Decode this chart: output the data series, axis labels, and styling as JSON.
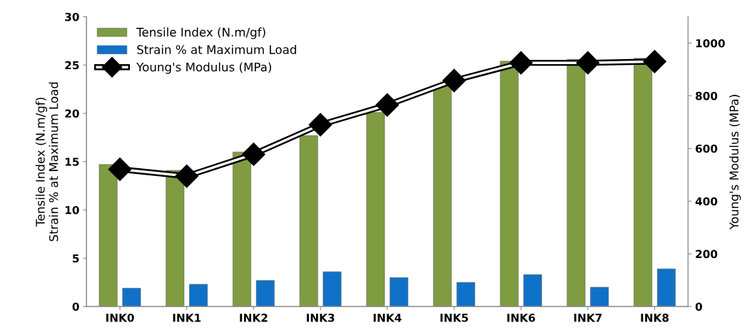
{
  "chart_data": {
    "type": "bar",
    "ylabel": "Tensile Index (N.m/gf)\nStrain % at Maximum Load",
    "y2label": "Young's Modulus (MPa)",
    "categories": [
      "INK0",
      "INK1",
      "INK2",
      "INK3",
      "INK4",
      "INK5",
      "INK6",
      "INK7",
      "INK8"
    ],
    "series": [
      {
        "name": "Tensile Index (N.m/gf)",
        "color": "#7f9c41",
        "values": [
          14.7,
          14.1,
          16.0,
          17.7,
          20.1,
          22.9,
          25.4,
          25.6,
          25.7
        ]
      },
      {
        "name": "Strain % at Maximum Load",
        "color": "#0f72c8",
        "values": [
          1.9,
          2.3,
          2.7,
          3.6,
          3.0,
          2.5,
          3.3,
          2.0,
          3.9
        ]
      },
      {
        "name": "Young's Modulus (MPa)",
        "type": "line",
        "axis": "y2",
        "color": "#000000",
        "marker": "diamond",
        "values": [
          521,
          495,
          578,
          690,
          765,
          858,
          925,
          925,
          930
        ]
      }
    ],
    "ylim": [
      0,
      30
    ],
    "yticks": [
      0,
      5,
      10,
      15,
      20,
      25,
      30
    ],
    "y2lim": [
      0,
      1100
    ],
    "y2ticks": [
      0,
      200,
      400,
      600,
      800,
      1000
    ],
    "legend": "top left",
    "grid": false
  }
}
